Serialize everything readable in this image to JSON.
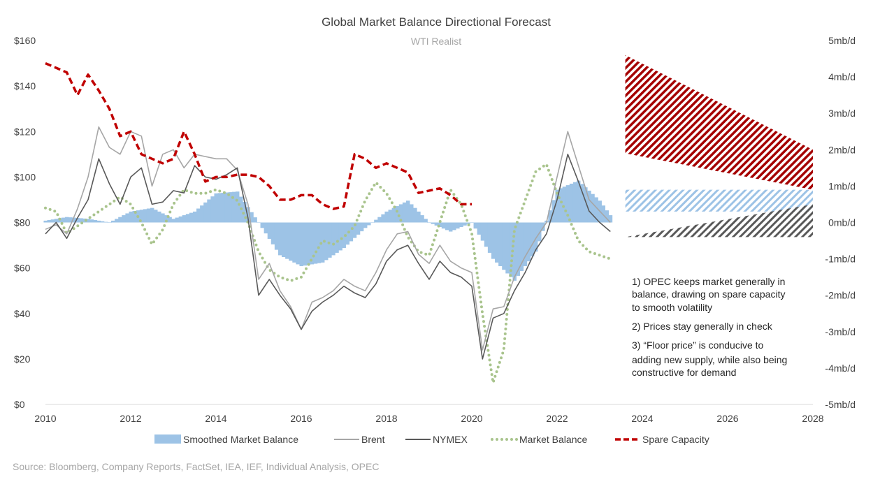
{
  "chart_data": {
    "type": "line",
    "title": "Global Market Balance Directional Forecast",
    "subtitle": "WTI Realist",
    "x_ticks": [
      "2010",
      "2012",
      "2014",
      "2016",
      "2018",
      "2020",
      "2022",
      "2024",
      "2026",
      "2028"
    ],
    "x_range": [
      2010,
      2028
    ],
    "y_left": {
      "ticks": [
        "$0",
        "$20",
        "$40",
        "$60",
        "$80",
        "$100",
        "$120",
        "$140",
        "$160"
      ],
      "range": [
        0,
        160
      ]
    },
    "y_right": {
      "ticks": [
        "-5mb/d",
        "-4mb/d",
        "-3mb/d",
        "-2mb/d",
        "-1mb/d",
        "0mb/d",
        "1mb/d",
        "2mb/d",
        "3mb/d",
        "4mb/d",
        "5mb/d"
      ],
      "range": [
        -5,
        5
      ]
    },
    "colors": {
      "smoothed": "#9dc3e6",
      "brent": "#a6a6a6",
      "nymex": "#595959",
      "market_balance": "#a9c48d",
      "spare_capacity": "#c00000",
      "hatch_red": "#a50000",
      "hatch_blue": "#9dc3e6",
      "hatch_gray": "#595959"
    },
    "series": [
      {
        "name": "Smoothed Market Balance",
        "axis": "right",
        "style": "bars",
        "x": [
          2010,
          2010.5,
          2011,
          2011.5,
          2012,
          2012.5,
          2013,
          2013.5,
          2014,
          2014.5,
          2015,
          2015.5,
          2016,
          2016.5,
          2017,
          2017.5,
          2018,
          2018.5,
          2019,
          2019.5,
          2020,
          2020.5,
          2021,
          2021.5,
          2022,
          2022.5,
          2023,
          2023.25
        ],
        "y": [
          0.05,
          0.15,
          0.1,
          0.0,
          0.3,
          0.4,
          0.1,
          0.3,
          0.8,
          0.85,
          0.0,
          -0.9,
          -1.2,
          -1.1,
          -0.7,
          -0.15,
          0.3,
          0.6,
          0.0,
          -0.25,
          0.0,
          -1.0,
          -1.6,
          -0.8,
          0.9,
          1.15,
          0.6,
          0.2
        ]
      },
      {
        "name": "Brent",
        "axis": "left",
        "x": [
          2010,
          2010.25,
          2010.5,
          2010.75,
          2011,
          2011.25,
          2011.5,
          2011.75,
          2012,
          2012.25,
          2012.5,
          2012.75,
          2013,
          2013.25,
          2013.5,
          2013.75,
          2014,
          2014.25,
          2014.5,
          2014.75,
          2015,
          2015.25,
          2015.5,
          2015.75,
          2016,
          2016.25,
          2016.5,
          2016.75,
          2017,
          2017.25,
          2017.5,
          2017.75,
          2018,
          2018.25,
          2018.5,
          2018.75,
          2019,
          2019.25,
          2019.5,
          2019.75,
          2020,
          2020.25,
          2020.5,
          2020.75,
          2021,
          2021.25,
          2021.5,
          2021.75,
          2022,
          2022.25,
          2022.5,
          2022.75,
          2023,
          2023.25
        ],
        "y": [
          77,
          79,
          75,
          86,
          100,
          122,
          113,
          110,
          120,
          118,
          96,
          110,
          112,
          104,
          110,
          109,
          108,
          108,
          103,
          88,
          55,
          62,
          50,
          43,
          33,
          45,
          47,
          50,
          55,
          52,
          50,
          58,
          68,
          75,
          76,
          66,
          62,
          70,
          63,
          60,
          58,
          24,
          42,
          43,
          56,
          65,
          73,
          80,
          100,
          120,
          105,
          90,
          85,
          80
        ]
      },
      {
        "name": "NYMEX",
        "axis": "left",
        "x": [
          2010,
          2010.25,
          2010.5,
          2010.75,
          2011,
          2011.25,
          2011.5,
          2011.75,
          2012,
          2012.25,
          2012.5,
          2012.75,
          2013,
          2013.25,
          2013.5,
          2013.75,
          2014,
          2014.25,
          2014.5,
          2014.75,
          2015,
          2015.25,
          2015.5,
          2015.75,
          2016,
          2016.25,
          2016.5,
          2016.75,
          2017,
          2017.25,
          2017.5,
          2017.75,
          2018,
          2018.25,
          2018.5,
          2018.75,
          2019,
          2019.25,
          2019.5,
          2019.75,
          2020,
          2020.25,
          2020.5,
          2020.75,
          2021,
          2021.25,
          2021.5,
          2021.75,
          2022,
          2022.25,
          2022.5,
          2022.75,
          2023,
          2023.25
        ],
        "y": [
          75,
          80,
          73,
          82,
          90,
          108,
          97,
          88,
          100,
          104,
          88,
          89,
          94,
          93,
          105,
          100,
          99,
          101,
          104,
          82,
          48,
          55,
          48,
          42,
          33,
          41,
          45,
          48,
          52,
          49,
          47,
          53,
          63,
          68,
          70,
          62,
          55,
          63,
          58,
          56,
          52,
          20,
          38,
          40,
          50,
          58,
          68,
          75,
          90,
          110,
          98,
          85,
          80,
          76
        ]
      },
      {
        "name": "Market Balance",
        "axis": "right",
        "style": "dotted",
        "x": [
          2010,
          2010.25,
          2010.5,
          2010.75,
          2011,
          2011.25,
          2011.5,
          2011.75,
          2012,
          2012.25,
          2012.5,
          2012.75,
          2013,
          2013.25,
          2013.5,
          2013.75,
          2014,
          2014.25,
          2014.5,
          2014.75,
          2015,
          2015.25,
          2015.5,
          2015.75,
          2016,
          2016.25,
          2016.5,
          2016.75,
          2017,
          2017.25,
          2017.5,
          2017.75,
          2018,
          2018.25,
          2018.5,
          2018.75,
          2019,
          2019.25,
          2019.5,
          2019.75,
          2020,
          2020.25,
          2020.5,
          2020.75,
          2021,
          2021.25,
          2021.5,
          2021.75,
          2022,
          2022.25,
          2022.5,
          2022.75,
          2023,
          2023.25
        ],
        "y": [
          0.4,
          0.3,
          -0.3,
          -0.1,
          0.1,
          0.3,
          0.5,
          0.7,
          0.5,
          0.0,
          -0.6,
          -0.2,
          0.5,
          0.9,
          0.8,
          0.8,
          0.9,
          0.8,
          0.6,
          0.0,
          -0.8,
          -1.3,
          -1.5,
          -1.6,
          -1.5,
          -1.0,
          -0.5,
          -0.6,
          -0.4,
          -0.1,
          0.6,
          1.1,
          0.8,
          0.3,
          -0.4,
          -0.8,
          -0.9,
          0.0,
          0.9,
          0.5,
          -0.3,
          -2.5,
          -4.4,
          -3.5,
          -0.2,
          0.6,
          1.4,
          1.6,
          0.8,
          0.2,
          -0.5,
          -0.8,
          -0.9,
          -1.0
        ]
      },
      {
        "name": "Spare Capacity",
        "axis": "left",
        "style": "dashed",
        "x": [
          2010,
          2010.25,
          2010.5,
          2010.75,
          2011,
          2011.25,
          2011.5,
          2011.75,
          2012,
          2012.25,
          2012.5,
          2012.75,
          2013,
          2013.25,
          2013.5,
          2013.75,
          2014,
          2014.25,
          2014.5,
          2014.75,
          2015,
          2015.25,
          2015.5,
          2015.75,
          2016,
          2016.25,
          2016.5,
          2016.75,
          2017,
          2017.25,
          2017.5,
          2017.75,
          2018,
          2018.25,
          2018.5,
          2018.75,
          2019,
          2019.25,
          2019.5,
          2019.75,
          2020
        ],
        "y": [
          150,
          148,
          146,
          136,
          145,
          138,
          130,
          118,
          120,
          110,
          108,
          106,
          108,
          120,
          110,
          98,
          100,
          100,
          101,
          101,
          100,
          96,
          90,
          90,
          92,
          92,
          88,
          86,
          87,
          110,
          108,
          104,
          106,
          104,
          102,
          93,
          94,
          95,
          92,
          88,
          88
        ]
      }
    ],
    "forecast_bands": [
      {
        "color": "hatch_red",
        "x": [
          2023.6,
          2028
        ],
        "top": [
          4.6,
          2.0
        ],
        "bottom": [
          1.9,
          0.9
        ]
      },
      {
        "color": "hatch_blue",
        "x": [
          2023.6,
          2028
        ],
        "top": [
          0.9,
          0.9
        ],
        "bottom": [
          0.3,
          0.3
        ]
      },
      {
        "color": "hatch_gray",
        "x": [
          2023.6,
          2028
        ],
        "top": [
          -0.4,
          0.5
        ],
        "bottom": [
          -0.4,
          -0.4
        ]
      }
    ],
    "annotation": [
      "1) OPEC keeps market generally in",
      "balance, drawing on spare capacity",
      "to smooth volatility",
      "2) Prices stay generally in check",
      "3) “Floor price” is conducive to",
      "adding new supply, while also being",
      "constructive for demand"
    ],
    "legend": [
      "Smoothed Market Balance",
      "Brent",
      "NYMEX",
      "Market Balance",
      "Spare Capacity"
    ],
    "legend_position": "bottom",
    "grid": false,
    "source": "Source: Bloomberg, Company Reports, FactSet, IEA, IEF, Individual Analysis, OPEC"
  }
}
